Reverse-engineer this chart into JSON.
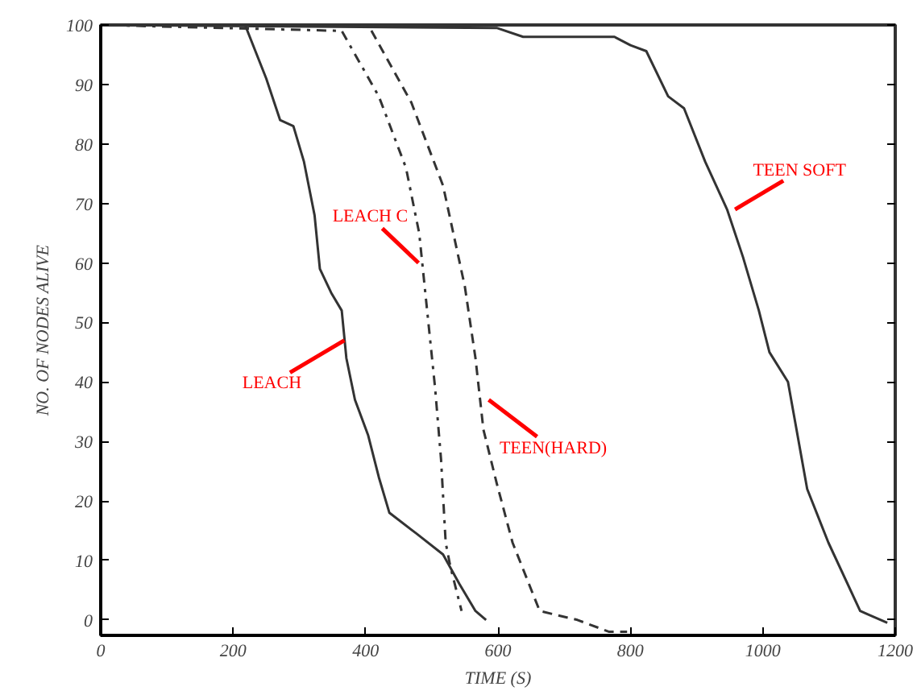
{
  "chart_data": {
    "type": "line",
    "xlabel": "TIME (S)",
    "ylabel": "NO. OF NODES ALIVE",
    "xlim": [
      0,
      1200
    ],
    "ylim": [
      -2.6,
      100
    ],
    "xticks": [
      0,
      200,
      400,
      600,
      800,
      1000,
      1200
    ],
    "yticks": [
      0,
      10,
      20,
      30,
      40,
      50,
      60,
      70,
      80,
      90,
      100
    ],
    "grid": false,
    "marker": "none",
    "series": [
      {
        "color": "#333333",
        "line_style": "solid",
        "x": [
          0,
          218,
          250,
          271,
          291,
          307,
          323,
          331,
          348,
          364,
          371,
          384,
          404,
          420,
          436,
          477,
          517,
          542,
          566,
          582
        ],
        "values": [
          100,
          100,
          91,
          84,
          83,
          77,
          68,
          59,
          55,
          52,
          44,
          37,
          31,
          24,
          18,
          14.5,
          11,
          6,
          1.5,
          0
        ]
      },
      {
        "color": "#333333",
        "line_style": "dotted",
        "x": [
          0,
          364,
          420,
          461,
          481,
          493,
          505,
          514,
          521,
          528,
          545
        ],
        "values": [
          100,
          99,
          88,
          76,
          65,
          52,
          39,
          27,
          13,
          9,
          1.5
        ]
      },
      {
        "color": "#333333",
        "line_style": "dashed",
        "x": [
          0,
          404,
          469,
          517,
          550,
          566,
          578,
          598,
          622,
          663,
          720,
          768,
          795
        ],
        "values": [
          100,
          100,
          87,
          73,
          56,
          44,
          32,
          23,
          13,
          1.5,
          0,
          -2,
          -2
        ]
      },
      {
        "color": "#333333",
        "line_style": "solid",
        "x": [
          0,
          598,
          638,
          776,
          800,
          824,
          857,
          881,
          913,
          946,
          970,
          994,
          1010,
          1038,
          1067,
          1099,
          1147,
          1188
        ],
        "values": [
          100,
          99.5,
          98,
          98,
          96.6,
          95.6,
          88,
          86,
          77,
          69,
          61,
          52,
          45,
          40,
          22,
          13,
          1.5,
          -0.5
        ]
      }
    ],
    "annotations": [
      {
        "text": "LEACH",
        "x": 368,
        "y": 47
      },
      {
        "text": "LEACH C",
        "x": 480,
        "y": 60
      },
      {
        "text": "TEEN(HARD)",
        "x": 586,
        "y": 37
      },
      {
        "text": "TEEN SOFT",
        "x": 958,
        "y": 69
      }
    ]
  }
}
